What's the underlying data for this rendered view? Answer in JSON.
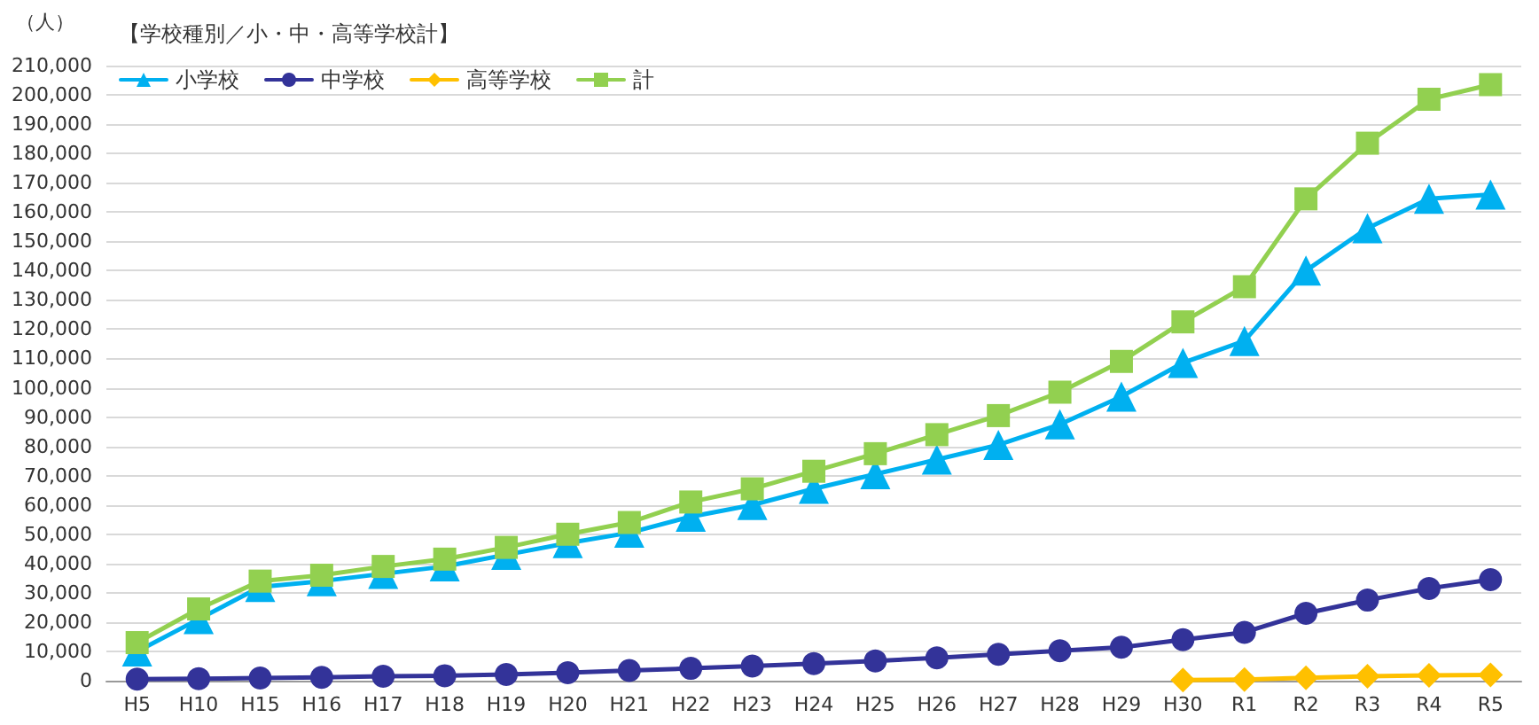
{
  "chart_data": {
    "type": "line",
    "title": "【学校種別／小・中・高等学校計】",
    "ylabel": "（人）",
    "categories": [
      "H5",
      "H10",
      "H15",
      "H16",
      "H17",
      "H18",
      "H19",
      "H20",
      "H21",
      "H22",
      "H23",
      "H24",
      "H25",
      "H26",
      "H27",
      "H28",
      "H29",
      "H30",
      "R1",
      "R2",
      "R3",
      "R4",
      "R5"
    ],
    "series": [
      {
        "name": "小学校",
        "color": "#00b0f0",
        "marker": "triangle",
        "values": [
          10000,
          21000,
          32000,
          34000,
          36500,
          39000,
          43000,
          47000,
          50500,
          56000,
          60000,
          65500,
          70500,
          75500,
          80500,
          87500,
          97000,
          108500,
          116000,
          140000,
          154500,
          164500,
          166000
        ]
      },
      {
        "name": "中学校",
        "color": "#333399",
        "marker": "circle",
        "values": [
          500,
          700,
          900,
          1100,
          1500,
          1700,
          2100,
          2700,
          3500,
          4200,
          5000,
          5800,
          6700,
          7800,
          9000,
          10200,
          11400,
          14000,
          16500,
          23000,
          27500,
          31500,
          34500
        ]
      },
      {
        "name": "高等学校",
        "color": "#ffc000",
        "marker": "diamond",
        "values": [
          null,
          null,
          null,
          null,
          null,
          null,
          null,
          null,
          null,
          null,
          null,
          null,
          null,
          null,
          null,
          null,
          null,
          200,
          400,
          1000,
          1500,
          1800,
          2000
        ]
      },
      {
        "name": "計",
        "color": "#92d050",
        "marker": "square",
        "values": [
          13000,
          24500,
          34000,
          36000,
          39000,
          41500,
          45500,
          50000,
          54000,
          61000,
          65500,
          71500,
          77500,
          84000,
          90500,
          98500,
          109000,
          122500,
          134500,
          164500,
          183500,
          198500,
          203500
        ]
      }
    ],
    "ylim": [
      0,
      210000
    ],
    "yticks": [
      0,
      {
        "value": 10000,
        "label": "10,000"
      },
      {
        "value": 20000,
        "label": "20,000"
      },
      {
        "value": 30000,
        "label": "30,000"
      },
      {
        "value": 40000,
        "label": "40,000"
      },
      {
        "value": 50000,
        "label": "50,000"
      },
      {
        "value": 60000,
        "label": "60,000"
      },
      {
        "value": 70000,
        "label": "70,000"
      },
      {
        "value": 80000,
        "label": "80,000"
      },
      {
        "value": 90000,
        "label": "90,000"
      },
      {
        "value": 100000,
        "label": "100,000"
      },
      {
        "value": 110000,
        "label": "110,000"
      },
      {
        "value": 120000,
        "label": "120,000"
      },
      {
        "value": 130000,
        "label": "130,000"
      },
      {
        "value": 140000,
        "label": "140,000"
      },
      {
        "value": 150000,
        "label": "150,000"
      },
      {
        "value": 160000,
        "label": "160,000"
      },
      {
        "value": 170000,
        "label": "170,000"
      },
      {
        "value": 180000,
        "label": "180,000"
      },
      {
        "value": 190000,
        "label": "190,000"
      },
      {
        "value": 200000,
        "label": "200,000"
      },
      {
        "value": 210000,
        "label": "210,000"
      }
    ],
    "grid": "y",
    "legend": "top left"
  }
}
